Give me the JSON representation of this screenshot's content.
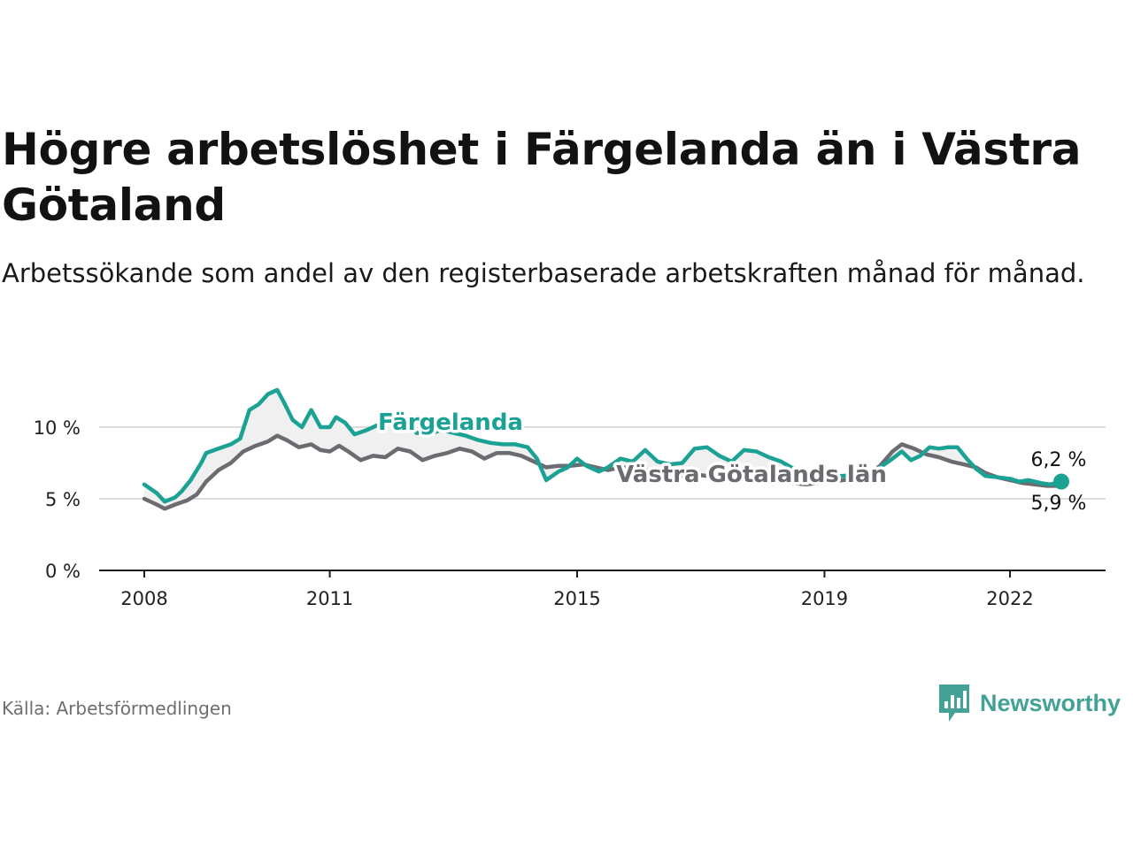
{
  "title": "Högre arbetslöshet i Färgelanda än i Västra Götaland",
  "subtitle": "Arbetssökande som andel av den registerbaserade arbetskraften månad för månad.",
  "source": "Källa: Arbetsförmedlingen",
  "brand": {
    "name": "Newsworthy",
    "icon": "newsworthy-logo-icon",
    "color": "#43a295"
  },
  "colors": {
    "accent": "#1ba295",
    "secondary": "#6b6b70",
    "grid": "#dcdcdc",
    "axis": "#1a1a1a"
  },
  "chart_data": {
    "type": "line",
    "title": "Högre arbetslöshet i Färgelanda än i Västra Götaland",
    "xlabel": "",
    "ylabel": "",
    "x_range": [
      2008,
      2022.83
    ],
    "ylim": [
      0,
      12.5
    ],
    "yticks": [
      0,
      5,
      10
    ],
    "ytick_labels": [
      "0 %",
      "5 %",
      "10 %"
    ],
    "xticks": [
      2008,
      2011,
      2015,
      2019,
      2022
    ],
    "xtick_labels": [
      "2008",
      "2011",
      "2015",
      "2019",
      "2022"
    ],
    "grid": true,
    "series": [
      {
        "name": "Färgelanda",
        "label": "Färgelanda",
        "color": "#1ba295",
        "end_label": "6,2 %",
        "points": [
          [
            2008.0,
            6.0
          ],
          [
            2008.2,
            5.4
          ],
          [
            2008.33,
            4.8
          ],
          [
            2008.5,
            5.1
          ],
          [
            2008.6,
            5.5
          ],
          [
            2008.75,
            6.3
          ],
          [
            2008.92,
            7.5
          ],
          [
            2009.0,
            8.2
          ],
          [
            2009.2,
            8.5
          ],
          [
            2009.4,
            8.8
          ],
          [
            2009.55,
            9.2
          ],
          [
            2009.7,
            11.2
          ],
          [
            2009.85,
            11.6
          ],
          [
            2010.0,
            12.3
          ],
          [
            2010.15,
            12.6
          ],
          [
            2010.25,
            11.8
          ],
          [
            2010.4,
            10.5
          ],
          [
            2010.55,
            10.0
          ],
          [
            2010.7,
            11.2
          ],
          [
            2010.85,
            10.0
          ],
          [
            2011.0,
            10.0
          ],
          [
            2011.1,
            10.7
          ],
          [
            2011.25,
            10.3
          ],
          [
            2011.4,
            9.5
          ],
          [
            2011.6,
            9.8
          ],
          [
            2011.8,
            10.2
          ],
          [
            2012.0,
            10.8
          ],
          [
            2012.2,
            10.6
          ],
          [
            2012.4,
            9.6
          ],
          [
            2012.6,
            9.5
          ],
          [
            2012.8,
            9.8
          ],
          [
            2013.0,
            9.6
          ],
          [
            2013.2,
            9.4
          ],
          [
            2013.4,
            9.1
          ],
          [
            2013.6,
            8.9
          ],
          [
            2013.8,
            8.8
          ],
          [
            2014.0,
            8.8
          ],
          [
            2014.2,
            8.6
          ],
          [
            2014.35,
            7.8
          ],
          [
            2014.5,
            6.3
          ],
          [
            2014.7,
            6.9
          ],
          [
            2014.85,
            7.2
          ],
          [
            2015.0,
            7.8
          ],
          [
            2015.15,
            7.3
          ],
          [
            2015.35,
            6.9
          ],
          [
            2015.5,
            7.2
          ],
          [
            2015.7,
            7.8
          ],
          [
            2015.9,
            7.6
          ],
          [
            2016.1,
            8.4
          ],
          [
            2016.3,
            7.6
          ],
          [
            2016.5,
            7.4
          ],
          [
            2016.7,
            7.5
          ],
          [
            2016.9,
            8.5
          ],
          [
            2017.1,
            8.6
          ],
          [
            2017.3,
            8.0
          ],
          [
            2017.5,
            7.6
          ],
          [
            2017.7,
            8.4
          ],
          [
            2017.9,
            8.3
          ],
          [
            2018.1,
            7.9
          ],
          [
            2018.3,
            7.6
          ],
          [
            2018.5,
            7.1
          ],
          [
            2018.7,
            6.8
          ],
          [
            2018.9,
            6.6
          ],
          [
            2019.1,
            6.6
          ],
          [
            2019.3,
            6.6
          ],
          [
            2019.5,
            6.7
          ],
          [
            2019.7,
            6.9
          ],
          [
            2019.9,
            7.2
          ],
          [
            2020.1,
            7.8
          ],
          [
            2020.25,
            8.3
          ],
          [
            2020.4,
            7.7
          ],
          [
            2020.55,
            8.0
          ],
          [
            2020.7,
            8.6
          ],
          [
            2020.85,
            8.5
          ],
          [
            2021.0,
            8.6
          ],
          [
            2021.15,
            8.6
          ],
          [
            2021.3,
            7.8
          ],
          [
            2021.45,
            7.1
          ],
          [
            2021.6,
            6.6
          ],
          [
            2021.8,
            6.5
          ],
          [
            2022.0,
            6.4
          ],
          [
            2022.15,
            6.2
          ],
          [
            2022.3,
            6.3
          ],
          [
            2022.5,
            6.1
          ],
          [
            2022.65,
            6.0
          ],
          [
            2022.83,
            6.2
          ]
        ]
      },
      {
        "name": "Västra Götalands län",
        "label": "Västra Götalands län",
        "color": "#6b6b70",
        "end_label": "5,9 %",
        "points": [
          [
            2008.0,
            5.0
          ],
          [
            2008.2,
            4.6
          ],
          [
            2008.33,
            4.3
          ],
          [
            2008.5,
            4.6
          ],
          [
            2008.7,
            4.9
          ],
          [
            2008.85,
            5.3
          ],
          [
            2009.0,
            6.2
          ],
          [
            2009.2,
            7.0
          ],
          [
            2009.4,
            7.5
          ],
          [
            2009.6,
            8.3
          ],
          [
            2009.8,
            8.7
          ],
          [
            2010.0,
            9.0
          ],
          [
            2010.15,
            9.4
          ],
          [
            2010.3,
            9.1
          ],
          [
            2010.5,
            8.6
          ],
          [
            2010.7,
            8.8
          ],
          [
            2010.85,
            8.4
          ],
          [
            2011.0,
            8.3
          ],
          [
            2011.15,
            8.7
          ],
          [
            2011.3,
            8.3
          ],
          [
            2011.5,
            7.7
          ],
          [
            2011.7,
            8.0
          ],
          [
            2011.9,
            7.9
          ],
          [
            2012.1,
            8.5
          ],
          [
            2012.3,
            8.3
          ],
          [
            2012.5,
            7.7
          ],
          [
            2012.7,
            8.0
          ],
          [
            2012.9,
            8.2
          ],
          [
            2013.1,
            8.5
          ],
          [
            2013.3,
            8.3
          ],
          [
            2013.5,
            7.8
          ],
          [
            2013.7,
            8.2
          ],
          [
            2013.9,
            8.2
          ],
          [
            2014.1,
            8.0
          ],
          [
            2014.3,
            7.6
          ],
          [
            2014.5,
            7.2
          ],
          [
            2014.7,
            7.3
          ],
          [
            2014.9,
            7.3
          ],
          [
            2015.1,
            7.4
          ],
          [
            2015.3,
            7.2
          ],
          [
            2015.5,
            7.0
          ],
          [
            2015.7,
            7.2
          ],
          [
            2015.9,
            7.1
          ],
          [
            2016.1,
            7.0
          ],
          [
            2016.3,
            6.8
          ],
          [
            2016.5,
            6.7
          ],
          [
            2016.7,
            6.6
          ],
          [
            2016.9,
            6.7
          ],
          [
            2017.1,
            6.6
          ],
          [
            2017.3,
            6.5
          ],
          [
            2017.5,
            6.4
          ],
          [
            2017.7,
            6.4
          ],
          [
            2017.9,
            6.4
          ],
          [
            2018.1,
            6.3
          ],
          [
            2018.3,
            6.2
          ],
          [
            2018.5,
            6.1
          ],
          [
            2018.7,
            6.0
          ],
          [
            2018.9,
            6.1
          ],
          [
            2019.1,
            6.2
          ],
          [
            2019.3,
            6.3
          ],
          [
            2019.5,
            6.4
          ],
          [
            2019.7,
            6.7
          ],
          [
            2019.9,
            7.3
          ],
          [
            2020.1,
            8.3
          ],
          [
            2020.25,
            8.8
          ],
          [
            2020.45,
            8.5
          ],
          [
            2020.65,
            8.1
          ],
          [
            2020.85,
            7.9
          ],
          [
            2021.05,
            7.6
          ],
          [
            2021.25,
            7.4
          ],
          [
            2021.45,
            7.2
          ],
          [
            2021.6,
            6.8
          ],
          [
            2021.8,
            6.5
          ],
          [
            2022.0,
            6.3
          ],
          [
            2022.2,
            6.1
          ],
          [
            2022.4,
            6.0
          ],
          [
            2022.6,
            5.9
          ],
          [
            2022.83,
            5.9
          ]
        ]
      }
    ]
  }
}
